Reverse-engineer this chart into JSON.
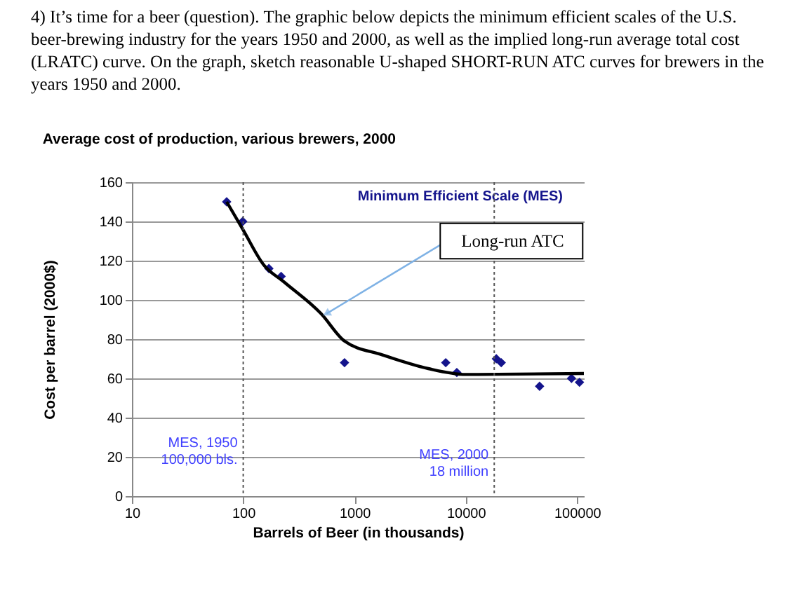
{
  "chart_data": {
    "type": "scatter",
    "title": "Average cost of production, various brewers, 2000",
    "xlabel": "Barrels of Beer (in thousands)",
    "ylabel": "Cost per barrel (2000$)",
    "series": [
      {
        "name": "Minimum Efficient Scale (MES)",
        "color": "#14148c",
        "marker": "diamond",
        "x": [
          71,
          99,
          170,
          219,
          813,
          6600,
          8300,
          18800,
          20800,
          46000,
          89000,
          105000
        ],
        "values": [
          150,
          140,
          116,
          112,
          68,
          68,
          63,
          70,
          68,
          56,
          60,
          58
        ]
      },
      {
        "type": "line",
        "color": "#000000",
        "marker": "none",
        "line_style": "solid",
        "x": [
          71,
          99,
          152,
          234,
          500,
          813,
          1770,
          4600,
          10000,
          115000
        ],
        "values": [
          150,
          136,
          118,
          109,
          93,
          79,
          72,
          65,
          62,
          62.5
        ]
      }
    ],
    "log": "x",
    "xlim": [
      10,
      115000
    ],
    "xticks": [
      10,
      100,
      1000,
      10000,
      100000
    ],
    "ylim": [
      0,
      160
    ],
    "yticks": [
      0,
      20,
      40,
      60,
      80,
      100,
      120,
      140,
      160
    ],
    "grid": "y",
    "ref_lines": [
      {
        "axis": "x",
        "value": 100,
        "label": "MES, 1950\n100,000 bls.",
        "line_style": "dotted",
        "color": "#555555"
      },
      {
        "axis": "x",
        "value": 18000,
        "label": "MES, 2000\n18 million",
        "line_style": "dotted",
        "color": "#555555"
      }
    ],
    "annotations": [
      "4)  It’s time for a beer (question).  The graphic below depicts the minimum efficient scales of the U.S. beer-brewing industry for the years 1950 and 2000, as well as the implied long-run average total cost (LRATC) curve.  On the graph, sketch reasonable U-shaped SHORT-RUN ATC curves for brewers in the years 1950 and 2000.",
      {
        "text": "Long-run ATC",
        "x": 560,
        "y": 93
      }
    ]
  }
}
